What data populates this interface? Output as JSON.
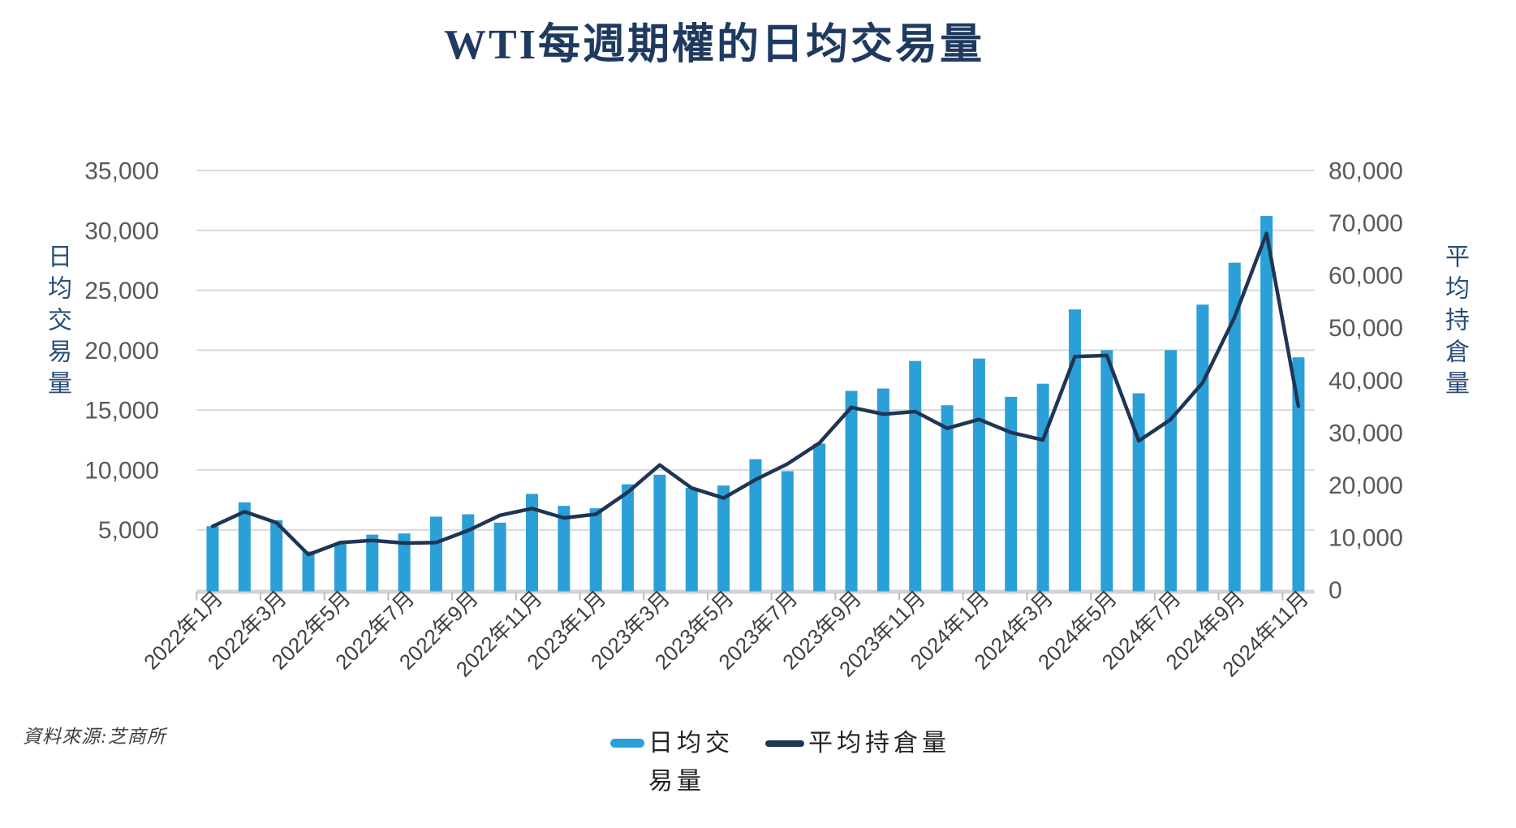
{
  "title": "WTI每週期權的日均交易量",
  "source": "資料來源:芝商所",
  "colors": {
    "bar": "#2ba0d8",
    "line": "#1f3554",
    "grid": "#d9d9d9",
    "baseline": "#d3d3d3",
    "tick_text": "#595959",
    "x_label_text": "#3f3f3f",
    "title_text": "#1f3a5f",
    "axis_title_text": "#2a4d76"
  },
  "left_axis": {
    "title": "日均交易量",
    "ticks": [
      "35,000",
      "30,000",
      "25,000",
      "20,000",
      "15,000",
      "10,000",
      "5,000"
    ]
  },
  "right_axis": {
    "title": "平均持倉量",
    "ticks": [
      "80,000",
      "70,000",
      "60,000",
      "50,000",
      "40,000",
      "30,000",
      "20,000",
      "10,000",
      "0"
    ]
  },
  "legend": {
    "bar_label": "日均交易量",
    "line_label": "平均持倉量"
  },
  "chart_data": {
    "type": "bar",
    "subtype": "bar+line dual axis",
    "title": "WTI每週期權的日均交易量",
    "grid": true,
    "legend_position": "bottom",
    "left_ylim": [
      0,
      35000
    ],
    "right_ylim": [
      0,
      80000
    ],
    "categories": [
      "2022年1月",
      "2022年2月",
      "2022年3月",
      "2022年4月",
      "2022年5月",
      "2022年6月",
      "2022年7月",
      "2022年8月",
      "2022年9月",
      "2022年10月",
      "2022年11月",
      "2022年12月",
      "2023年1月",
      "2023年2月",
      "2023年3月",
      "2023年4月",
      "2023年5月",
      "2023年6月",
      "2023年7月",
      "2023年8月",
      "2023年9月",
      "2023年10月",
      "2023年11月",
      "2023年12月",
      "2024年1月",
      "2024年2月",
      "2024年3月",
      "2024年4月",
      "2024年5月",
      "2024年6月",
      "2024年7月",
      "2024年8月",
      "2024年9月",
      "2024年10月",
      "2024年11月"
    ],
    "x_tick_labels": [
      "2022年1月",
      "2022年3月",
      "2022年5月",
      "2022年7月",
      "2022年9月",
      "2022年11月",
      "2023年1月",
      "2023年3月",
      "2023年5月",
      "2023年7月",
      "2023年9月",
      "2023年11月",
      "2024年1月",
      "2024年3月",
      "2024年5月",
      "2024年7月",
      "2024年9月",
      "2024年11月"
    ],
    "series": [
      {
        "name": "日均交易量",
        "type": "bar",
        "axis": "left",
        "color": "#2ba0d8",
        "values": [
          5300,
          7300,
          5800,
          3200,
          3900,
          4600,
          4700,
          6100,
          6300,
          5600,
          8000,
          7000,
          6800,
          8800,
          9600,
          8500,
          8700,
          10900,
          9900,
          12200,
          16600,
          16800,
          19100,
          15400,
          19300,
          16100,
          17200,
          23400,
          20000,
          16400,
          20000,
          23800,
          27300,
          31200,
          19400
        ]
      },
      {
        "name": "平均持倉量",
        "type": "line",
        "axis": "right",
        "color": "#1f3554",
        "values": [
          12100,
          14900,
          12800,
          6700,
          9000,
          9400,
          8900,
          9000,
          11300,
          14200,
          15500,
          13700,
          14400,
          18600,
          23800,
          19400,
          17500,
          21000,
          24000,
          28000,
          34800,
          33500,
          34000,
          30800,
          32500,
          30000,
          28600,
          44500,
          44700,
          28400,
          32500,
          39500,
          52000,
          68000,
          35000
        ]
      }
    ]
  }
}
